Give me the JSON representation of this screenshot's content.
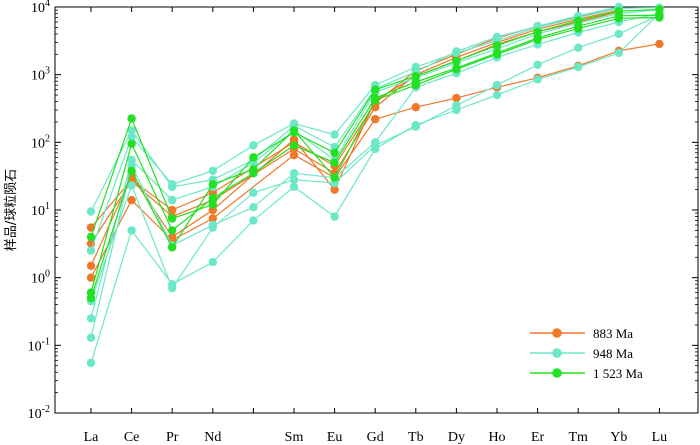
{
  "chart_data": {
    "type": "line",
    "ylabel": "样品/球粒陨石",
    "yscale": "log",
    "ylim": [
      0.01,
      10000
    ],
    "yticks": [
      {
        "base": "10",
        "exp": "-2"
      },
      {
        "base": "10",
        "exp": "-1"
      },
      {
        "base": "10",
        "exp": "0"
      },
      {
        "base": "10",
        "exp": "1"
      },
      {
        "base": "10",
        "exp": "2"
      },
      {
        "base": "10",
        "exp": "3"
      },
      {
        "base": "10",
        "exp": "4"
      }
    ],
    "categories": [
      "La",
      "Ce",
      "Pr",
      "Nd",
      "",
      "Sm",
      "Eu",
      "Gd",
      "Tb",
      "Dy",
      "Ho",
      "Er",
      "Tm",
      "Yb",
      "Lu"
    ],
    "legend_position": "lower-right",
    "groups": [
      {
        "name": "883 Ma",
        "color": "#F07828",
        "samples": [
          [
            5.5,
            28,
            10,
            18,
            null,
            100,
            45,
            380,
            1150,
            2000,
            3500,
            5200,
            7200,
            9800,
            null
          ],
          [
            3.2,
            27,
            8,
            14,
            null,
            80,
            35,
            330,
            1000,
            1800,
            3000,
            4700,
            6600,
            9000,
            null
          ],
          [
            1.5,
            32,
            4,
            10,
            null,
            110,
            20,
            420,
            950,
            1600,
            2800,
            4300,
            6000,
            8500,
            null
          ],
          [
            1.0,
            14,
            3.6,
            7.5,
            null,
            65,
            30,
            220,
            330,
            450,
            650,
            900,
            1350,
            2250,
            2850
          ]
        ]
      },
      {
        "name": "948 Ma",
        "color": "#6CE8C8",
        "samples": [
          [
            9.5,
            150,
            22,
            28,
            55,
            175,
            85,
            620,
            1100,
            2200,
            3600,
            5200,
            7400,
            10000,
            null
          ],
          [
            2.5,
            120,
            24,
            38,
            90,
            190,
            130,
            700,
            1300,
            2100,
            3200,
            5000,
            7000,
            9600,
            9800
          ],
          [
            0.25,
            55,
            14,
            22,
            50,
            150,
            55,
            550,
            900,
            1500,
            2400,
            4000,
            5800,
            8000,
            9200
          ],
          [
            0.13,
            45,
            3,
            6,
            11,
            35,
            30,
            100,
            650,
            1050,
            1800,
            2800,
            4200,
            6000,
            8000
          ],
          [
            0.055,
            5,
            0.8,
            1.7,
            7,
            22,
            8,
            80,
            180,
            300,
            500,
            850,
            1300,
            2100,
            8000
          ],
          [
            0.45,
            23,
            0.7,
            5.5,
            18,
            28,
            25,
            90,
            170,
            350,
            700,
            1400,
            2500,
            4000,
            7600
          ]
        ]
      },
      {
        "name": "1 523 Ma",
        "color": "#22E022",
        "samples": [
          [
            4.0,
            225,
            7.5,
            12,
            60,
            140,
            70,
            600,
            950,
            1600,
            2700,
            4300,
            6300,
            8700,
            9200
          ],
          [
            0.6,
            95,
            5.0,
            15,
            35,
            90,
            50,
            450,
            780,
            1250,
            2100,
            3500,
            5200,
            7400,
            7600
          ],
          [
            0.5,
            38,
            2.8,
            24,
            40,
            150,
            30,
            420,
            700,
            1200,
            2000,
            3300,
            4800,
            6800,
            7000
          ]
        ]
      }
    ]
  }
}
